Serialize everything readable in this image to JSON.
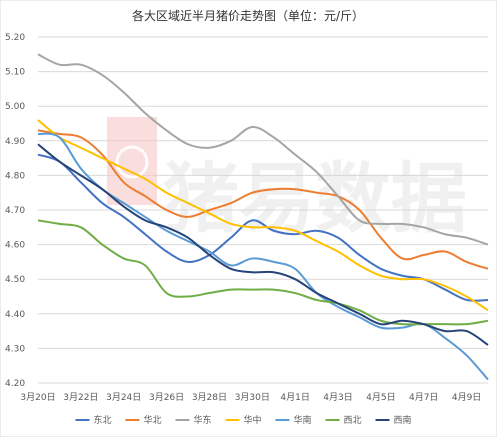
{
  "chart_data": {
    "type": "line",
    "title": "各大区域近半月猪价走势图（单位：元/斤）",
    "xlabel": "",
    "ylabel": "",
    "ylim": [
      4.2,
      5.2
    ],
    "yticks": [
      "4.20",
      "4.30",
      "4.40",
      "4.50",
      "4.60",
      "4.70",
      "4.80",
      "4.90",
      "5.00",
      "5.10",
      "5.20"
    ],
    "x_tick_labels": [
      "3月20日",
      "3月22日",
      "3月24日",
      "3月26日",
      "3月28日",
      "3月30日",
      "4月1日",
      "4月3日",
      "4月5日",
      "4月7日",
      "4月9日"
    ],
    "grid": true,
    "legend_position": "bottom",
    "watermark_text": "猪易数据",
    "series": [
      {
        "name": "东北",
        "color": "#4472C4",
        "values": [
          4.86,
          4.84,
          4.78,
          4.72,
          4.68,
          4.63,
          4.58,
          4.55,
          4.57,
          4.62,
          4.67,
          4.64,
          4.63,
          4.64,
          4.62,
          4.57,
          4.53,
          4.51,
          4.5,
          4.47,
          4.44,
          4.44
        ]
      },
      {
        "name": "华北",
        "color": "#ED7D31",
        "values": [
          4.93,
          4.92,
          4.91,
          4.86,
          4.78,
          4.74,
          4.7,
          4.68,
          4.7,
          4.72,
          4.75,
          4.76,
          4.76,
          4.75,
          4.74,
          4.7,
          4.62,
          4.56,
          4.57,
          4.58,
          4.55,
          4.53
        ]
      },
      {
        "name": "华东",
        "color": "#A5A5A5",
        "values": [
          5.15,
          5.12,
          5.12,
          5.09,
          5.04,
          4.98,
          4.93,
          4.89,
          4.88,
          4.9,
          4.94,
          4.91,
          4.86,
          4.81,
          4.74,
          4.67,
          4.66,
          4.66,
          4.65,
          4.63,
          4.62,
          4.6
        ]
      },
      {
        "name": "华中",
        "color": "#FFC000",
        "values": [
          4.96,
          4.91,
          4.88,
          4.85,
          4.82,
          4.79,
          4.75,
          4.72,
          4.69,
          4.66,
          4.65,
          4.65,
          4.64,
          4.61,
          4.58,
          4.54,
          4.51,
          4.5,
          4.5,
          4.48,
          4.45,
          4.41
        ]
      },
      {
        "name": "华南",
        "color": "#5B9BD5",
        "values": [
          4.92,
          4.91,
          4.82,
          4.76,
          4.72,
          4.68,
          4.64,
          4.61,
          4.58,
          4.54,
          4.56,
          4.55,
          4.53,
          4.46,
          4.42,
          4.39,
          4.36,
          4.36,
          4.37,
          4.33,
          4.28,
          4.21
        ]
      },
      {
        "name": "西北",
        "color": "#70AD47",
        "values": [
          4.67,
          4.66,
          4.65,
          4.6,
          4.56,
          4.54,
          4.46,
          4.45,
          4.46,
          4.47,
          4.47,
          4.47,
          4.46,
          4.44,
          4.43,
          4.41,
          4.38,
          4.37,
          4.37,
          4.37,
          4.37,
          4.38
        ]
      },
      {
        "name": "西南",
        "color": "#264478",
        "values": [
          4.89,
          4.84,
          4.8,
          4.76,
          4.71,
          4.67,
          4.65,
          4.62,
          4.57,
          4.53,
          4.52,
          4.52,
          4.5,
          4.46,
          4.43,
          4.4,
          4.37,
          4.38,
          4.37,
          4.35,
          4.35,
          4.31
        ]
      }
    ]
  }
}
